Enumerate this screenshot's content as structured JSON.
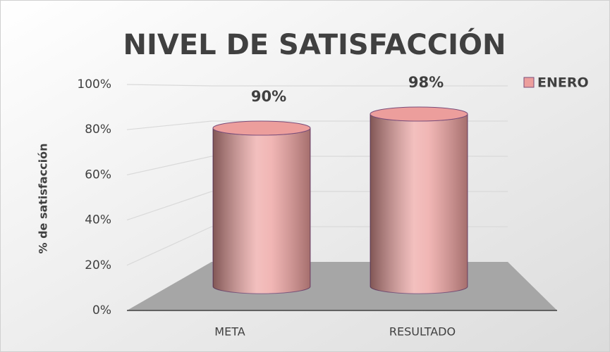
{
  "chart_data": {
    "type": "bar3d-cylinder",
    "title": "NIVEL DE SATISFACCIÓN",
    "ylabel": "% de satisfacción",
    "categories": [
      "META",
      "RESULTADO"
    ],
    "series": [
      {
        "name": "ENERO",
        "color": "#ec9e9c",
        "values": [
          90,
          98
        ],
        "value_labels": [
          "90%",
          "98%"
        ]
      }
    ],
    "ylim": [
      0,
      100
    ],
    "yticks": [
      {
        "value": 0,
        "label": "0%"
      },
      {
        "value": 20,
        "label": "20%"
      },
      {
        "value": 40,
        "label": "40%"
      },
      {
        "value": 60,
        "label": "60%"
      },
      {
        "value": 80,
        "label": "80%"
      },
      {
        "value": 100,
        "label": "100%"
      }
    ],
    "grid": true,
    "legend": "top-right"
  }
}
